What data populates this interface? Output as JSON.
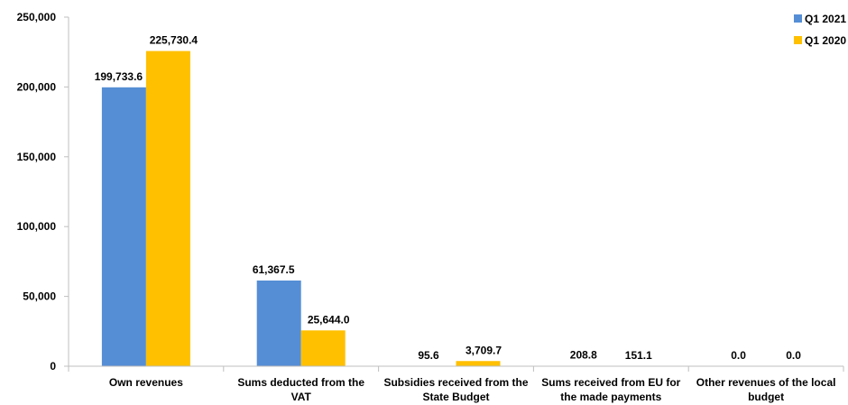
{
  "chart_data": {
    "type": "bar",
    "categories": [
      [
        "Own revenues"
      ],
      [
        "Sums deducted from the",
        "VAT"
      ],
      [
        "Subsidies received from the",
        "State Budget"
      ],
      [
        "Sums received from EU for",
        "the made payments"
      ],
      [
        "Other revenues of the local",
        "budget"
      ]
    ],
    "series": [
      {
        "name": "Q1 2021",
        "color": "#558ED5",
        "values": [
          199733.6,
          61367.5,
          95.6,
          208.8,
          0.0
        ],
        "labels": [
          "199,733.6",
          "61,367.5",
          "95.6",
          "208.8",
          "0.0"
        ]
      },
      {
        "name": "Q1 2020",
        "color": "#FFC000",
        "values": [
          225730.4,
          25644.0,
          3709.7,
          151.1,
          0.0
        ],
        "labels": [
          "225,730.4",
          "25,644.0",
          "3,709.7",
          "151.1",
          "0.0"
        ]
      }
    ],
    "ylim": [
      0,
      250000
    ],
    "yticks": [
      0,
      50000,
      100000,
      150000,
      200000,
      250000
    ],
    "ytick_labels": [
      "0",
      "50,000",
      "100,000",
      "150,000",
      "200,000",
      "250,000"
    ],
    "grid": false,
    "legend": "top-right",
    "axis_color": "#BFBFBF"
  }
}
